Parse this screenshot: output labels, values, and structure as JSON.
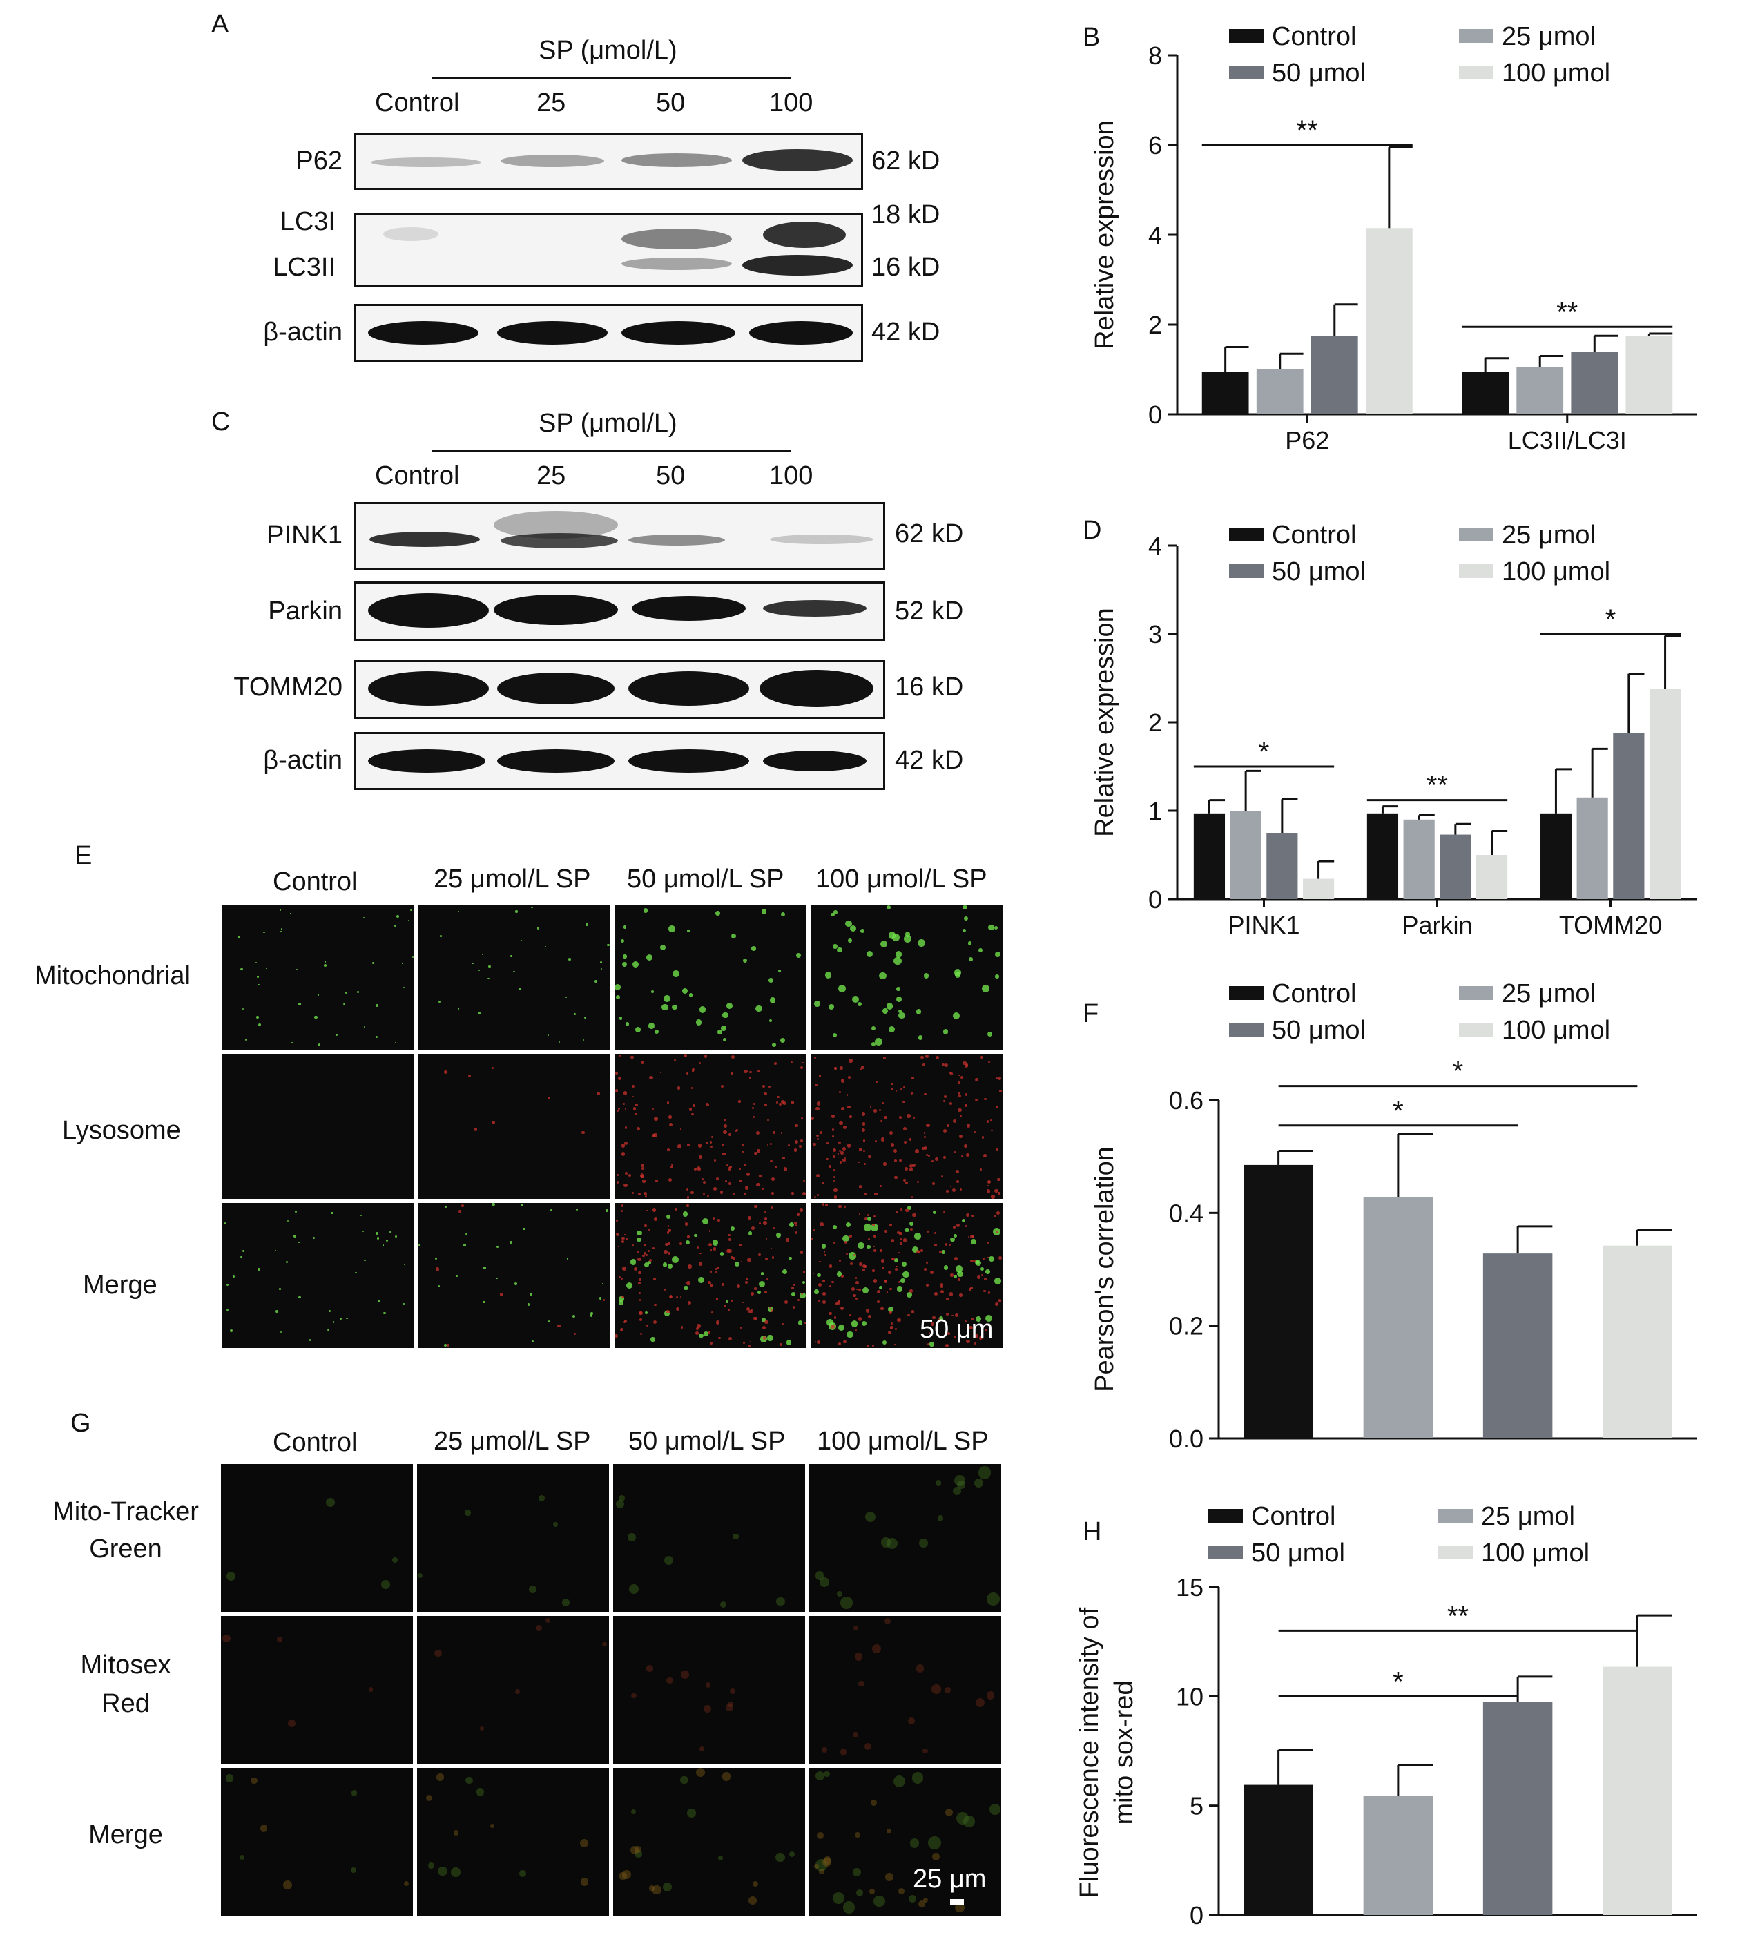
{
  "panels": {
    "A": {
      "letter": "A",
      "group_label": "SP (μmol/L)",
      "lanes": [
        "Control",
        "25",
        "50",
        "100"
      ],
      "rows": [
        {
          "label": "P62",
          "size": "62 kD"
        },
        {
          "label": "LC3I",
          "size": "18 kD"
        },
        {
          "label": "LC3II",
          "size": "16 kD"
        },
        {
          "label": "β-actin",
          "size": "42 kD"
        }
      ]
    },
    "C": {
      "letter": "C",
      "group_label": "SP (μmol/L)",
      "lanes": [
        "Control",
        "25",
        "50",
        "100"
      ],
      "rows": [
        {
          "label": "PINK1",
          "size": "62 kD"
        },
        {
          "label": "Parkin",
          "size": "52 kD"
        },
        {
          "label": "TOMM20",
          "size": "16 kD"
        },
        {
          "label": "β-actin",
          "size": "42 kD"
        }
      ]
    },
    "E": {
      "letter": "E",
      "columns": [
        "Control",
        "25 μmol/L SP",
        "50 μmol/L SP",
        "100 μmol/L SP"
      ],
      "rows": [
        "Mitochondrial",
        "Lysosome",
        "Merge"
      ],
      "scale": "50 μm"
    },
    "G": {
      "letter": "G",
      "columns": [
        "Control",
        "25 μmol/L SP",
        "50 μmol/L SP",
        "100 μmol/L SP"
      ],
      "rows": [
        [
          "Mito-Tracker",
          "Green"
        ],
        [
          "Mitosex",
          "Red"
        ],
        [
          "Merge",
          ""
        ]
      ],
      "scale": "25 μm"
    }
  },
  "legend": [
    "Control",
    "25 μmol",
    "50 μmol",
    "100 μmol"
  ],
  "colors": {
    "Control": "#111111",
    "25 μmol": "#9ea4a9",
    "50 μmol": "#6e737c",
    "100 μmol": "#dcdfdb"
  },
  "chart_data": [
    {
      "id": "B",
      "letter": "B",
      "type": "bar",
      "ylabel": "Relative expression",
      "ylim": [
        0,
        8
      ],
      "yticks": [
        0,
        2,
        4,
        6,
        8
      ],
      "categories": [
        "P62",
        "LC3II/LC3I"
      ],
      "series": [
        {
          "name": "Control",
          "values": [
            0.95,
            0.95
          ],
          "errors": [
            0.55,
            0.3
          ]
        },
        {
          "name": "25 μmol",
          "values": [
            1.0,
            1.05
          ],
          "errors": [
            0.35,
            0.25
          ]
        },
        {
          "name": "50 μmol",
          "values": [
            1.75,
            1.4
          ],
          "errors": [
            0.7,
            0.35
          ]
        },
        {
          "name": "100 μmol",
          "values": [
            4.15,
            1.75
          ],
          "errors": [
            1.8,
            0.05
          ]
        }
      ],
      "annotations": [
        {
          "text": "**",
          "category": 0,
          "from": 0,
          "to": 3,
          "y": 6.0
        },
        {
          "text": "**",
          "category": 1,
          "from": 0,
          "to": 3,
          "y": 1.95
        }
      ]
    },
    {
      "id": "D",
      "letter": "D",
      "type": "bar",
      "ylabel": "Relative expression",
      "ylim": [
        0,
        4
      ],
      "yticks": [
        0,
        1,
        2,
        3,
        4
      ],
      "categories": [
        "PINK1",
        "Parkin",
        "TOMM20"
      ],
      "series": [
        {
          "name": "Control",
          "values": [
            0.97,
            0.97,
            0.97
          ],
          "errors": [
            0.15,
            0.08,
            0.5
          ]
        },
        {
          "name": "25 μmol",
          "values": [
            1.0,
            0.9,
            1.15
          ],
          "errors": [
            0.45,
            0.05,
            0.55
          ]
        },
        {
          "name": "50 μmol",
          "values": [
            0.75,
            0.73,
            1.88
          ],
          "errors": [
            0.38,
            0.12,
            0.67
          ]
        },
        {
          "name": "100 μmol",
          "values": [
            0.23,
            0.5,
            2.38
          ],
          "errors": [
            0.2,
            0.27,
            0.6
          ]
        }
      ],
      "annotations": [
        {
          "text": "*",
          "category": 0,
          "from": 0,
          "to": 3,
          "y": 1.5
        },
        {
          "text": "**",
          "category": 1,
          "from": 0,
          "to": 3,
          "y": 1.12
        },
        {
          "text": "*",
          "category": 2,
          "from": 0,
          "to": 3,
          "y": 3.0
        }
      ]
    },
    {
      "id": "F",
      "letter": "F",
      "type": "bar",
      "ylabel": "Pearson's correlation",
      "ylim": [
        0,
        0.6
      ],
      "yticks": [
        0.0,
        0.2,
        0.4,
        0.6
      ],
      "ytick_labels": [
        "0.0",
        "0.2",
        "0.4",
        "0.6"
      ],
      "categories": [
        "Control",
        "25 μmol",
        "50 μmol",
        "100 μmol"
      ],
      "values": [
        0.485,
        0.428,
        0.328,
        0.342
      ],
      "errors": [
        0.025,
        0.112,
        0.048,
        0.028
      ],
      "annotations": [
        {
          "text": "*",
          "from": 0,
          "to": 2,
          "y": 0.555
        },
        {
          "text": "*",
          "from": 0,
          "to": 3,
          "y": 0.625
        }
      ]
    },
    {
      "id": "H",
      "letter": "H",
      "type": "bar",
      "ylabel": "Fluorescence intensity of mito sox-red",
      "ylabel_lines": [
        "Fluorescence intensity of",
        "mito sox-red"
      ],
      "ylim": [
        0,
        15
      ],
      "yticks": [
        0,
        5,
        10,
        15
      ],
      "categories": [
        "Control",
        "25 μmol",
        "50 μmol",
        "100 μmol"
      ],
      "values": [
        5.95,
        5.45,
        9.75,
        11.35
      ],
      "errors": [
        1.6,
        1.4,
        1.15,
        2.35
      ],
      "annotations": [
        {
          "text": "*",
          "from": 0,
          "to": 2,
          "y": 10.0
        },
        {
          "text": "**",
          "from": 0,
          "to": 3,
          "y": 13.0
        }
      ]
    }
  ]
}
